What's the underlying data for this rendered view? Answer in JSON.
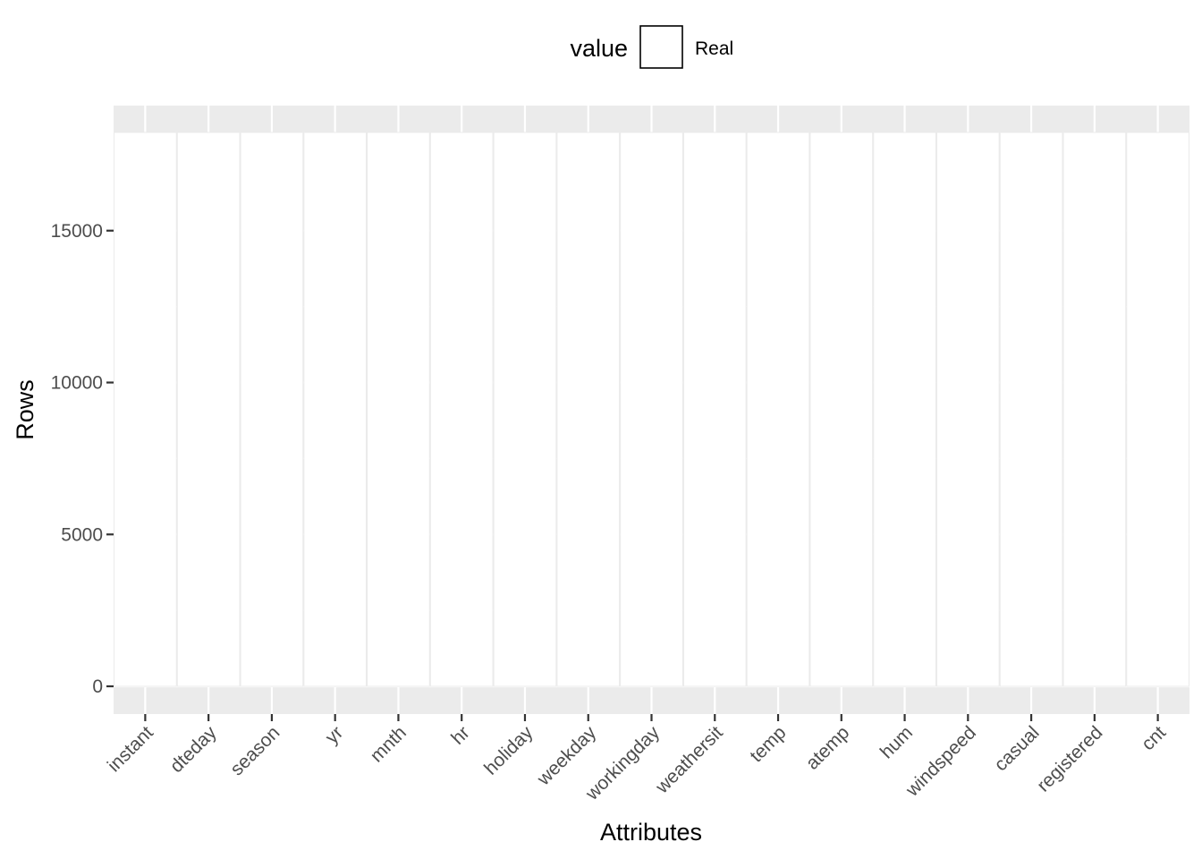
{
  "chart_data": {
    "type": "bar",
    "title": "",
    "xlabel": "Attributes",
    "ylabel": "Rows",
    "categories": [
      "instant",
      "dteday",
      "season",
      "yr",
      "mnth",
      "hr",
      "holiday",
      "weekday",
      "workingday",
      "weathersit",
      "temp",
      "atemp",
      "hum",
      "windspeed",
      "casual",
      "registered",
      "cnt"
    ],
    "series": [
      {
        "name": "Real",
        "values": [
          17379,
          17379,
          17379,
          17379,
          17379,
          17379,
          17379,
          17379,
          17379,
          17379,
          17379,
          17379,
          17379,
          17379,
          17379,
          17379,
          17379
        ]
      }
    ],
    "yticks": [
      0,
      5000,
      10000,
      15000
    ],
    "ylim": [
      0,
      17379
    ],
    "legend": {
      "title": "value",
      "position": "top"
    },
    "grid": true,
    "colors": {
      "panel": "#ebebeb",
      "grid": "#ffffff",
      "bar_fill": "#ffffff",
      "bar_border": "#ebebeb"
    }
  }
}
